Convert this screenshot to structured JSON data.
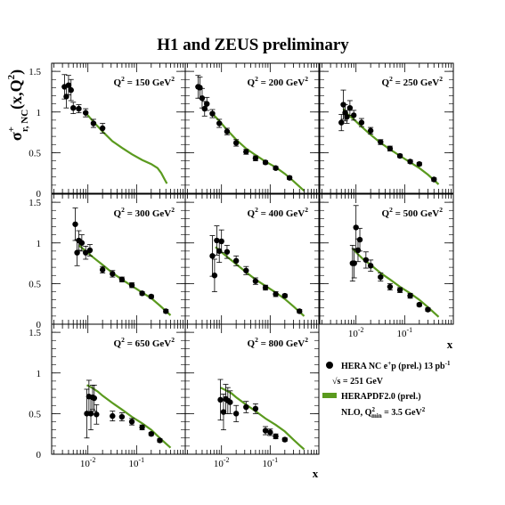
{
  "title": "H1 and ZEUS preliminary",
  "ylabel": {
    "main": "σ",
    "sup": "+",
    "sub": "r, NC",
    "rest": "(x,Q",
    "rest_sup": "2",
    "close": ")"
  },
  "xlabel": "x",
  "colors": {
    "data": "#000000",
    "theory": "#5a9a1e",
    "frame": "#000000"
  },
  "legend": {
    "data_label": "HERA NC e",
    "data_label_sup": "+",
    "data_label_rest": "p (prel.) 13 pb",
    "data_label_sup2": "-1",
    "sqrt_s_prefix": "√s = 251 GeV",
    "theory_label": "HERAPDF2.0 (prel.)",
    "theory_sub_prefix": "NLO, Q",
    "theory_sub_sup": "2",
    "theory_sub_min": "min",
    "theory_sub_rest": " = 3.5 GeV",
    "theory_sub_sup2": "2"
  },
  "chart_data": [
    {
      "type": "scatter",
      "q2": "150",
      "xlim": [
        0.0018,
        1.0
      ],
      "ylim": [
        0,
        1.6
      ],
      "yticks": [
        0,
        0.5,
        1,
        1.5
      ],
      "points": [
        [
          0.0033,
          1.31,
          0.15
        ],
        [
          0.0036,
          1.19,
          0.14
        ],
        [
          0.004,
          1.33,
          0.12
        ],
        [
          0.0045,
          1.27,
          0.13
        ],
        [
          0.005,
          1.05,
          0.07
        ],
        [
          0.0065,
          1.04,
          0.05
        ],
        [
          0.009,
          0.99,
          0.05
        ],
        [
          0.013,
          0.86,
          0.05
        ],
        [
          0.02,
          0.8,
          0.06
        ]
      ],
      "theory": [
        [
          0.009,
          0.99
        ],
        [
          0.013,
          0.88
        ],
        [
          0.02,
          0.76
        ],
        [
          0.032,
          0.64
        ],
        [
          0.05,
          0.56
        ],
        [
          0.08,
          0.48
        ],
        [
          0.13,
          0.41
        ],
        [
          0.2,
          0.36
        ],
        [
          0.27,
          0.31
        ],
        [
          0.32,
          0.25
        ],
        [
          0.37,
          0.18
        ],
        [
          0.42,
          0.12
        ]
      ]
    },
    {
      "type": "scatter",
      "q2": "200",
      "xlim": [
        0.0018,
        1.0
      ],
      "ylim": [
        0,
        1.6
      ],
      "yticks": [
        0,
        0.5,
        1,
        1.5
      ],
      "points": [
        [
          0.0033,
          1.31,
          0.14
        ],
        [
          0.0036,
          1.3,
          0.13
        ],
        [
          0.004,
          1.17,
          0.12
        ],
        [
          0.0045,
          1.04,
          0.09
        ],
        [
          0.005,
          1.1,
          0.08
        ],
        [
          0.0065,
          0.98,
          0.05
        ],
        [
          0.009,
          0.86,
          0.05
        ],
        [
          0.013,
          0.76,
          0.04
        ],
        [
          0.02,
          0.62,
          0.04
        ],
        [
          0.032,
          0.51,
          0.03
        ],
        [
          0.05,
          0.43,
          0.03
        ],
        [
          0.08,
          0.38,
          0.02
        ],
        [
          0.13,
          0.31,
          0.02
        ],
        [
          0.25,
          0.19,
          0.02
        ]
      ],
      "theory": [
        [
          0.0065,
          0.98
        ],
        [
          0.009,
          0.89
        ],
        [
          0.013,
          0.78
        ],
        [
          0.02,
          0.66
        ],
        [
          0.032,
          0.55
        ],
        [
          0.05,
          0.47
        ],
        [
          0.08,
          0.39
        ],
        [
          0.13,
          0.32
        ],
        [
          0.2,
          0.24
        ],
        [
          0.3,
          0.15
        ],
        [
          0.42,
          0.07
        ],
        [
          0.5,
          0.03
        ]
      ]
    },
    {
      "type": "scatter",
      "q2": "250",
      "xlim": [
        0.0018,
        1.0
      ],
      "ylim": [
        0,
        1.6
      ],
      "yticks": [
        0,
        0.5,
        1,
        1.5
      ],
      "points": [
        [
          0.005,
          0.87,
          0.1
        ],
        [
          0.0055,
          1.09,
          0.18
        ],
        [
          0.006,
          0.99,
          0.1
        ],
        [
          0.0065,
          0.94,
          0.08
        ],
        [
          0.0075,
          1.05,
          0.09
        ],
        [
          0.009,
          0.96,
          0.06
        ],
        [
          0.013,
          0.87,
          0.05
        ],
        [
          0.02,
          0.77,
          0.04
        ],
        [
          0.032,
          0.63,
          0.03
        ],
        [
          0.05,
          0.55,
          0.03
        ],
        [
          0.08,
          0.46,
          0.02
        ],
        [
          0.13,
          0.39,
          0.02
        ],
        [
          0.2,
          0.36,
          0.02
        ],
        [
          0.4,
          0.17,
          0.02
        ]
      ],
      "theory": [
        [
          0.0055,
          1.04
        ],
        [
          0.0065,
          0.98
        ],
        [
          0.009,
          0.91
        ],
        [
          0.013,
          0.82
        ],
        [
          0.02,
          0.72
        ],
        [
          0.032,
          0.62
        ],
        [
          0.05,
          0.54
        ],
        [
          0.08,
          0.46
        ],
        [
          0.13,
          0.38
        ],
        [
          0.2,
          0.31
        ],
        [
          0.3,
          0.23
        ],
        [
          0.42,
          0.15
        ],
        [
          0.5,
          0.11
        ]
      ]
    },
    {
      "type": "scatter",
      "q2": "300",
      "xlim": [
        0.0018,
        1.0
      ],
      "ylim": [
        0,
        1.6
      ],
      "yticks": [
        0,
        0.5,
        1,
        1.5
      ],
      "points": [
        [
          0.0055,
          1.23,
          0.2
        ],
        [
          0.006,
          0.88,
          0.16
        ],
        [
          0.0065,
          1.03,
          0.12
        ],
        [
          0.0075,
          1.0,
          0.1
        ],
        [
          0.009,
          0.88,
          0.08
        ],
        [
          0.011,
          0.91,
          0.07
        ],
        [
          0.02,
          0.67,
          0.04
        ],
        [
          0.032,
          0.62,
          0.04
        ],
        [
          0.05,
          0.55,
          0.03
        ],
        [
          0.08,
          0.48,
          0.03
        ],
        [
          0.13,
          0.38,
          0.02
        ],
        [
          0.2,
          0.34,
          0.02
        ],
        [
          0.4,
          0.16,
          0.02
        ]
      ],
      "theory": [
        [
          0.0065,
          0.97
        ],
        [
          0.009,
          0.9
        ],
        [
          0.013,
          0.82
        ],
        [
          0.02,
          0.73
        ],
        [
          0.032,
          0.63
        ],
        [
          0.05,
          0.55
        ],
        [
          0.08,
          0.47
        ],
        [
          0.13,
          0.39
        ],
        [
          0.2,
          0.32
        ],
        [
          0.3,
          0.23
        ],
        [
          0.42,
          0.15
        ],
        [
          0.5,
          0.11
        ]
      ]
    },
    {
      "type": "scatter",
      "q2": "400",
      "xlim": [
        0.0018,
        1.0
      ],
      "ylim": [
        0,
        1.6
      ],
      "yticks": [
        0,
        0.5,
        1,
        1.5
      ],
      "points": [
        [
          0.0065,
          0.84,
          0.25
        ],
        [
          0.0072,
          0.6,
          0.2
        ],
        [
          0.008,
          1.03,
          0.18
        ],
        [
          0.009,
          0.9,
          0.14
        ],
        [
          0.01,
          1.02,
          0.14
        ],
        [
          0.013,
          0.89,
          0.08
        ],
        [
          0.02,
          0.78,
          0.06
        ],
        [
          0.032,
          0.66,
          0.05
        ],
        [
          0.05,
          0.53,
          0.04
        ],
        [
          0.08,
          0.45,
          0.03
        ],
        [
          0.13,
          0.37,
          0.03
        ],
        [
          0.2,
          0.35,
          0.02
        ],
        [
          0.4,
          0.16,
          0.02
        ]
      ],
      "theory": [
        [
          0.0075,
          0.95
        ],
        [
          0.009,
          0.91
        ],
        [
          0.013,
          0.83
        ],
        [
          0.02,
          0.74
        ],
        [
          0.032,
          0.64
        ],
        [
          0.05,
          0.55
        ],
        [
          0.08,
          0.47
        ],
        [
          0.13,
          0.39
        ],
        [
          0.2,
          0.31
        ],
        [
          0.3,
          0.22
        ],
        [
          0.42,
          0.14
        ],
        [
          0.5,
          0.1
        ]
      ]
    },
    {
      "type": "scatter",
      "q2": "500",
      "xlim": [
        0.0018,
        1.0
      ],
      "ylim": [
        0,
        1.6
      ],
      "yticks": [
        0,
        0.5,
        1,
        1.5
      ],
      "points": [
        [
          0.0085,
          0.75,
          0.22
        ],
        [
          0.0092,
          0.75,
          0.18
        ],
        [
          0.01,
          1.19,
          0.27
        ],
        [
          0.011,
          0.91,
          0.14
        ],
        [
          0.012,
          1.04,
          0.14
        ],
        [
          0.016,
          0.79,
          0.1
        ],
        [
          0.02,
          0.72,
          0.07
        ],
        [
          0.032,
          0.58,
          0.05
        ],
        [
          0.05,
          0.46,
          0.04
        ],
        [
          0.08,
          0.42,
          0.03
        ],
        [
          0.13,
          0.35,
          0.03
        ],
        [
          0.2,
          0.24,
          0.02
        ],
        [
          0.3,
          0.18,
          0.02
        ]
      ],
      "theory": [
        [
          0.0085,
          0.93
        ],
        [
          0.011,
          0.86
        ],
        [
          0.014,
          0.8
        ],
        [
          0.02,
          0.73
        ],
        [
          0.032,
          0.63
        ],
        [
          0.05,
          0.55
        ],
        [
          0.08,
          0.46
        ],
        [
          0.13,
          0.38
        ],
        [
          0.2,
          0.3
        ],
        [
          0.3,
          0.21
        ],
        [
          0.42,
          0.13
        ],
        [
          0.5,
          0.09
        ]
      ]
    },
    {
      "type": "scatter",
      "q2": "650",
      "xlim": [
        0.0018,
        1.0
      ],
      "ylim": [
        0,
        1.6
      ],
      "yticks": [
        0,
        0.5,
        1,
        1.5
      ],
      "points": [
        [
          0.0095,
          0.5,
          0.3
        ],
        [
          0.0105,
          0.71,
          0.2
        ],
        [
          0.0115,
          0.5,
          0.2
        ],
        [
          0.0125,
          0.7,
          0.15
        ],
        [
          0.0135,
          0.69,
          0.16
        ],
        [
          0.015,
          0.49,
          0.12
        ],
        [
          0.032,
          0.47,
          0.06
        ],
        [
          0.05,
          0.46,
          0.05
        ],
        [
          0.08,
          0.4,
          0.04
        ],
        [
          0.13,
          0.33,
          0.03
        ],
        [
          0.2,
          0.25,
          0.02
        ],
        [
          0.3,
          0.17,
          0.02
        ]
      ],
      "theory": [
        [
          0.0095,
          0.85
        ],
        [
          0.012,
          0.82
        ],
        [
          0.016,
          0.77
        ],
        [
          0.02,
          0.72
        ],
        [
          0.032,
          0.63
        ],
        [
          0.05,
          0.55
        ],
        [
          0.08,
          0.46
        ],
        [
          0.13,
          0.38
        ],
        [
          0.2,
          0.3
        ],
        [
          0.3,
          0.2
        ],
        [
          0.42,
          0.12
        ],
        [
          0.5,
          0.08
        ]
      ]
    },
    {
      "type": "scatter",
      "q2": "800",
      "xlim": [
        0.0018,
        1.0
      ],
      "ylim": [
        0,
        1.6
      ],
      "yticks": [
        0,
        0.5,
        1,
        1.5
      ],
      "points": [
        [
          0.0095,
          0.67,
          0.25
        ],
        [
          0.011,
          0.52,
          0.22
        ],
        [
          0.0122,
          0.68,
          0.18
        ],
        [
          0.0135,
          0.66,
          0.16
        ],
        [
          0.015,
          0.64,
          0.14
        ],
        [
          0.02,
          0.5,
          0.1
        ],
        [
          0.032,
          0.58,
          0.07
        ],
        [
          0.05,
          0.56,
          0.06
        ],
        [
          0.08,
          0.29,
          0.05
        ],
        [
          0.1,
          0.27,
          0.04
        ],
        [
          0.13,
          0.22,
          0.03
        ],
        [
          0.2,
          0.18,
          0.02
        ]
      ],
      "theory": [
        [
          0.0095,
          0.82
        ],
        [
          0.012,
          0.79
        ],
        [
          0.016,
          0.75
        ],
        [
          0.02,
          0.7
        ],
        [
          0.032,
          0.61
        ],
        [
          0.05,
          0.53
        ],
        [
          0.08,
          0.44
        ],
        [
          0.13,
          0.36
        ],
        [
          0.2,
          0.28
        ],
        [
          0.3,
          0.18
        ],
        [
          0.42,
          0.1
        ],
        [
          0.5,
          0.06
        ]
      ]
    }
  ],
  "x_tick_labels": [
    {
      "base": "10",
      "exp": "-2",
      "value": 0.01
    },
    {
      "base": "10",
      "exp": "-1",
      "value": 0.1
    }
  ]
}
